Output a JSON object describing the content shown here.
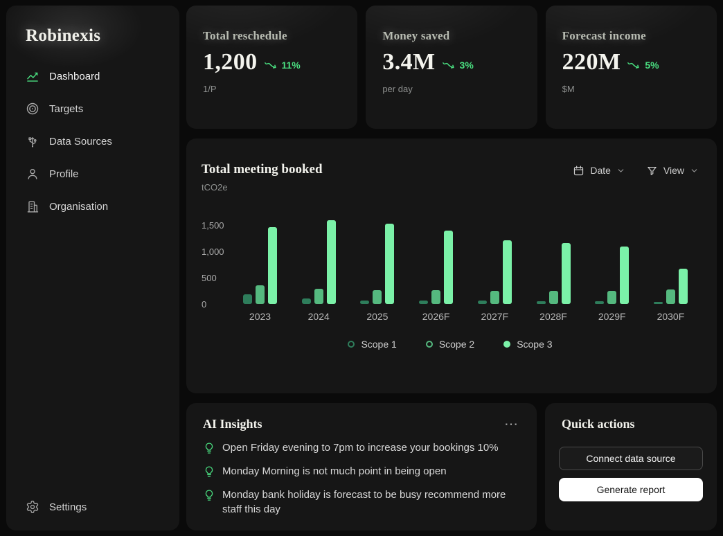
{
  "sidebar": {
    "logo": "Robinexis",
    "items": [
      {
        "label": "Dashboard",
        "icon": "line-chart-icon",
        "active": true
      },
      {
        "label": "Targets",
        "icon": "target-icon",
        "active": false
      },
      {
        "label": "Data Sources",
        "icon": "usb-icon",
        "active": false
      },
      {
        "label": "Profile",
        "icon": "user-icon",
        "active": false
      },
      {
        "label": "Organisation",
        "icon": "building-icon",
        "active": false
      }
    ],
    "footer_item": {
      "label": "Settings",
      "icon": "gear-icon"
    }
  },
  "stats": [
    {
      "title": "Total reschedule",
      "value": "1,200",
      "trend": "11%",
      "trend_icon": "trend-down-icon",
      "subtitle": "1/P"
    },
    {
      "title": "Money saved",
      "value": "3.4M",
      "trend": "3%",
      "trend_icon": "trend-down-icon",
      "subtitle": "per day"
    },
    {
      "title": "Forecast income",
      "value": "220M",
      "trend": "5%",
      "trend_icon": "trend-down-icon",
      "subtitle": "$M"
    }
  ],
  "chart_card": {
    "title": "Total meeting booked",
    "subtitle": "tCO2e",
    "controls": [
      {
        "label": "Date",
        "icon": "calendar-icon"
      },
      {
        "label": "View",
        "icon": "filter-icon"
      }
    ]
  },
  "chart_data": {
    "type": "bar",
    "title": "Total meeting booked",
    "ylabel": "tCO2e",
    "categories": [
      "2023",
      "2024",
      "2025",
      "2026F",
      "2027F",
      "2028F",
      "2029F",
      "2030F"
    ],
    "series": [
      {
        "name": "Scope 1",
        "color": "#2e7d5b",
        "values": [
          180,
          100,
          60,
          70,
          60,
          50,
          50,
          40
        ]
      },
      {
        "name": "Scope 2",
        "color": "#55b97f",
        "values": [
          350,
          290,
          260,
          260,
          250,
          255,
          250,
          280
        ]
      },
      {
        "name": "Scope 3",
        "color": "#7bf1a8",
        "values": [
          1460,
          1600,
          1530,
          1400,
          1210,
          1160,
          1090,
          670
        ]
      }
    ],
    "yticks": [
      {
        "label": "0",
        "value": 0
      },
      {
        "label": "500",
        "value": 500
      },
      {
        "label": "1,000",
        "value": 1000
      },
      {
        "label": "1,500",
        "value": 1500
      }
    ],
    "ylim": [
      0,
      1650
    ],
    "grid": false,
    "legend_position": "bottom"
  },
  "ai_insights": {
    "title": "AI Insights",
    "menu_label": "⋯",
    "items": [
      "Open Friday evening to 7pm to increase your bookings 10%",
      "Monday Morning is not much point in being open",
      "Monday bank holiday is forecast to be busy recommend more staff this day"
    ]
  },
  "quick_actions": {
    "title": "Quick actions",
    "buttons": [
      {
        "label": "Connect data source"
      },
      {
        "label": "Generate report"
      }
    ]
  },
  "colors": {
    "background": "#0a0a0a",
    "card": "#161616",
    "accent_green": "#4ade80",
    "scope1": "#2e7d5b",
    "scope2": "#55b97f",
    "scope3": "#7bf1a8"
  }
}
